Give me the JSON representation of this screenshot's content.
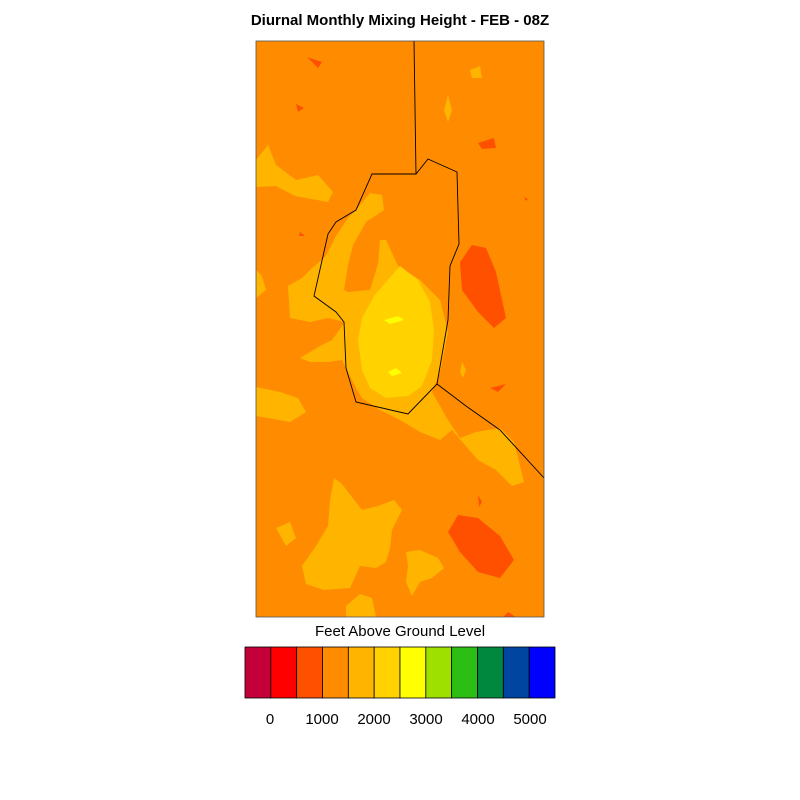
{
  "title": "Diurnal Monthly Mixing Height - FEB - 08Z",
  "colorbar": {
    "title": "Feet Above Ground Level",
    "colors": [
      "#c4003a",
      "#ff0000",
      "#ff5000",
      "#ff8c00",
      "#ffb400",
      "#ffd200",
      "#ffff00",
      "#9ee000",
      "#2dbe16",
      "#00883f",
      "#0046a0",
      "#0000ff"
    ],
    "tick_labels": [
      "0",
      "1000",
      "2000",
      "3000",
      "4000",
      "5000"
    ]
  },
  "map": {
    "background_color": "#ff8c00",
    "fill_colors": {
      "darker": "#ff5000",
      "mid": "#ffb400",
      "light": "#ffd200",
      "lightest": "#ffff00"
    }
  }
}
